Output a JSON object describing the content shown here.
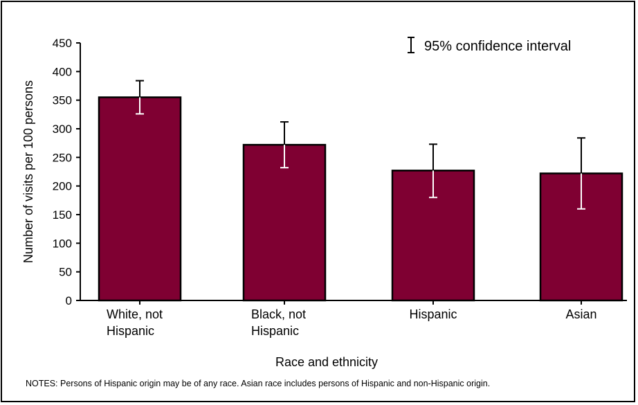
{
  "chart_data": {
    "type": "bar",
    "categories": [
      [
        "White, not",
        "Hispanic"
      ],
      [
        "Black, not",
        "Hispanic"
      ],
      [
        "Hispanic"
      ],
      [
        "Asian"
      ]
    ],
    "values": [
      355,
      272,
      227,
      222
    ],
    "ci_upper": [
      384,
      312,
      273,
      284
    ],
    "ci_lower": [
      326,
      232,
      180,
      160
    ],
    "xlabel": "Race and ethnicity",
    "ylabel": "Number of visits per 100 persons",
    "ylim": [
      0,
      450
    ],
    "yticks": [
      0,
      50,
      100,
      150,
      200,
      250,
      300,
      350,
      400,
      450
    ],
    "legend": {
      "label": "95% confidence interval",
      "position": "top-right"
    },
    "bar_color": "#7f0032",
    "grid": false
  },
  "notes": "NOTES:  Persons of Hispanic origin may be of any race.  Asian race includes persons of Hispanic and non-Hispanic origin."
}
